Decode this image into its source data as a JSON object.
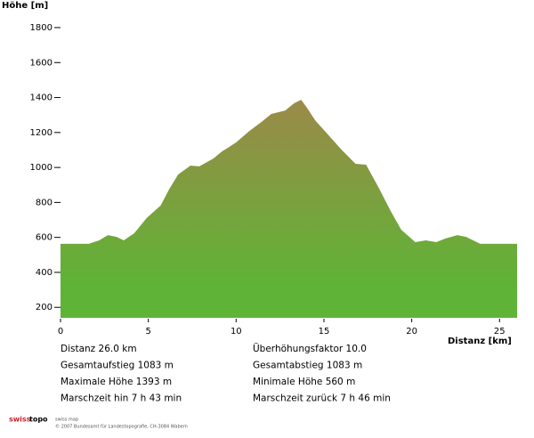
{
  "chart_data": {
    "type": "area",
    "ylabel": "Höhe [m]",
    "xlabel": "Distanz [km]",
    "x": [
      0,
      1.6,
      2.2,
      2.7,
      3.2,
      3.6,
      4.2,
      4.9,
      5.7,
      6.2,
      6.7,
      7.4,
      7.9,
      8.7,
      9.2,
      10,
      10.7,
      11.5,
      12,
      12.8,
      13.3,
      13.7,
      14,
      14.5,
      15.4,
      16,
      16.8,
      17.4,
      18.1,
      18.8,
      19.4,
      20.2,
      20.8,
      21.4,
      21.9,
      22.6,
      23.1,
      23.9,
      25.9,
      26
    ],
    "values": [
      563,
      563,
      583,
      613,
      603,
      583,
      624,
      710,
      782,
      878,
      960,
      1011,
      1006,
      1051,
      1092,
      1143,
      1204,
      1265,
      1306,
      1326,
      1367,
      1387,
      1347,
      1270,
      1169,
      1102,
      1021,
      1016,
      888,
      751,
      644,
      573,
      583,
      573,
      593,
      613,
      603,
      563,
      563,
      563
    ],
    "color_top": "#9b8a48",
    "color_bottom": "#5fb336",
    "xlim": [
      0,
      26
    ],
    "xticks": [
      0,
      5,
      10,
      15,
      20,
      25
    ],
    "ylim": [
      140,
      1800
    ],
    "yticks": [
      200,
      400,
      600,
      800,
      1000,
      1200,
      1400,
      1600,
      1800
    ]
  },
  "stats": [
    [
      "Distanz  26.0 km",
      "Überhöhungsfaktor  10.0"
    ],
    [
      "Gesamtaufstieg  1083 m",
      "Gesamtabstieg  1083 m"
    ],
    [
      "Maximale Höhe  1393 m",
      "Minimale Höhe  560 m"
    ],
    [
      "Marschzeit hin  7 h 43 min",
      "Marschzeit zurück  7 h 46 min"
    ]
  ],
  "footer": {
    "logo_red": "swiss",
    "logo_black": "topo",
    "tag": "swiss map",
    "copyright": "© 2007 Bundesamt für Landestopografie, CH-3084 Wabern"
  }
}
